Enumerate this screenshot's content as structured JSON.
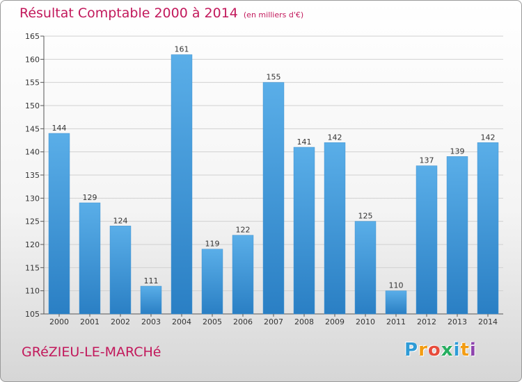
{
  "header": {
    "title": "Résultat Comptable 2000 à 2014",
    "subtitle": "(en milliers d'€)"
  },
  "commune": "GRéZIEU-LE-MARCHé",
  "logo": {
    "letters": [
      "P",
      "r",
      "o",
      "x",
      "i",
      "t",
      "i"
    ],
    "colors": [
      "#2e9bd6",
      "#f39c12",
      "#e74c3c",
      "#27ae60",
      "#2e9bd6",
      "#f39c12",
      "#8e44ad"
    ]
  },
  "colors": {
    "bar_top": "#5aaee8",
    "bar_bottom": "#2a7fc4",
    "accent": "#c2185b"
  },
  "chart_data": {
    "type": "bar",
    "title": "Résultat Comptable 2000 à 2014",
    "xlabel": "",
    "ylabel": "",
    "categories": [
      "2000",
      "2001",
      "2002",
      "2003",
      "2004",
      "2005",
      "2006",
      "2007",
      "2008",
      "2009",
      "2010",
      "2011",
      "2012",
      "2013",
      "2014"
    ],
    "values": [
      144,
      129,
      124,
      111,
      161,
      119,
      122,
      155,
      141,
      142,
      125,
      110,
      137,
      139,
      142
    ],
    "ylim": [
      105,
      165
    ],
    "yticks": [
      105,
      110,
      115,
      120,
      125,
      130,
      135,
      140,
      145,
      150,
      155,
      160,
      165
    ],
    "grid": true
  }
}
